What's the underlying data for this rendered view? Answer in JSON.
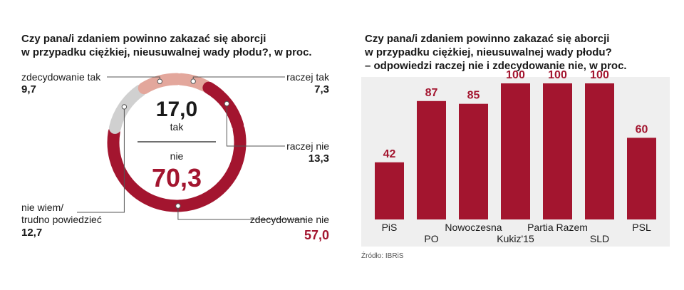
{
  "colors": {
    "dark_red": "#a3152f",
    "light_pink": "#e3a79c",
    "light_gray": "#d0d0d0",
    "bar_bg": "#efefef",
    "text": "#1a1a1a"
  },
  "chart_data": [
    {
      "type": "pie",
      "title": "Czy pana/i zdaniem powinno zakazać się aborcji w przypadku ciężkiej, nieusuwalnej wady płodu?, w proc.",
      "title_lines": [
        "Czy pana/i zdaniem powinno zakazać się aborcji",
        "w przypadku ciężkiej, nieusuwalnej wady płodu?, w proc."
      ],
      "slices": [
        {
          "label": "raczej tak",
          "value": 7.3,
          "value_text": "7,3",
          "color": "#e3a79c"
        },
        {
          "label": "raczej nie",
          "value": 13.3,
          "value_text": "13,3",
          "color": "#a3152f"
        },
        {
          "label": "zdecydowanie nie",
          "value": 57.0,
          "value_text": "57,0",
          "color": "#a3152f"
        },
        {
          "label_lines": [
            "nie wiem/",
            "trudno powiedzieć"
          ],
          "value": 12.7,
          "value_text": "12,7",
          "color": "#d0d0d0"
        },
        {
          "label": "zdecydowanie tak",
          "value": 9.7,
          "value_text": "9,7",
          "color": "#e3a79c"
        }
      ],
      "center": {
        "top_value": "17,0",
        "top_label": "tak",
        "bottom_label": "nie",
        "bottom_value": "70,3"
      }
    },
    {
      "type": "bar",
      "title_lines": [
        "Czy pana/i zdaniem powinno zakazać się aborcji",
        "w przypadku ciężkiej, nieusuwalnej wady płodu?",
        "– odpowiedzi raczej nie i zdecydowanie nie, w proc."
      ],
      "categories": [
        "PiS",
        "PO",
        "Nowoczesna",
        "Kukiz'15",
        "Partia Razem",
        "SLD",
        "PSL"
      ],
      "values": [
        42,
        87,
        85,
        100,
        100,
        100,
        60
      ],
      "ylim": [
        0,
        100
      ],
      "source": "Źródło: IBRiS"
    }
  ]
}
